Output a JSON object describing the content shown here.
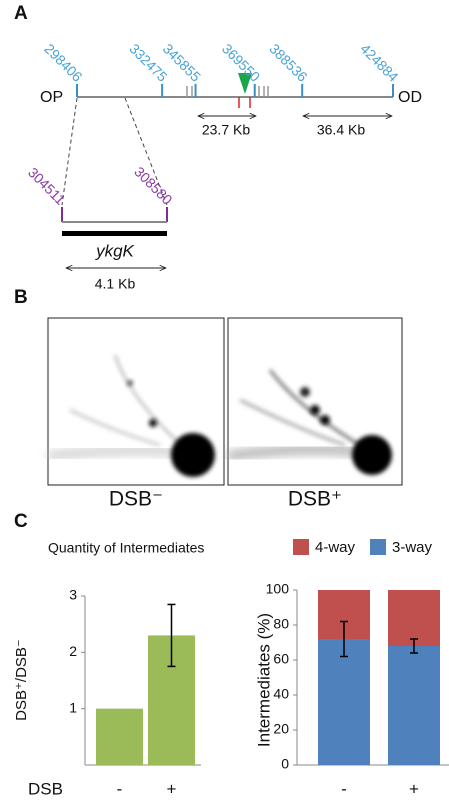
{
  "panel_labels": [
    "A",
    "B",
    "C"
  ],
  "map": {
    "left_label": "OP",
    "right_label": "OD",
    "xlim": [
      298406,
      424884
    ],
    "ticks": [
      298406,
      332475,
      345855,
      369550,
      388536,
      424884
    ],
    "spans": [
      "23.7 Kb",
      "36.4 Kb"
    ],
    "inset_ticks": [
      304511,
      308580
    ],
    "gene": "ykgK",
    "gene_span": "4.1 Kb"
  },
  "gel_labels": [
    "DSB⁻",
    "DSB⁺"
  ],
  "section_title": "Quantity of Intermediates",
  "x_axis_label": "DSB",
  "chart_data": [
    {
      "type": "bar",
      "ylabel": "DSB⁺/DSB⁻",
      "categories": [
        "-",
        "+"
      ],
      "values": [
        1,
        2.3
      ],
      "errors": [
        null,
        0.55
      ],
      "color": "#9bbb59",
      "ylim": [
        0,
        3
      ],
      "yticks": [
        1,
        2,
        3
      ]
    },
    {
      "type": "stacked_bar",
      "ylabel": "Intermediates (%)",
      "categories": [
        "-",
        "+"
      ],
      "series": [
        {
          "name": "4-way",
          "color": "#c0504d",
          "values": [
            28,
            32
          ]
        },
        {
          "name": "3-way",
          "color": "#4f81bd",
          "values": [
            72,
            68
          ],
          "errors": [
            10,
            4
          ]
        }
      ],
      "ylim": [
        0,
        100
      ],
      "yticks": [
        0,
        20,
        40,
        60,
        80,
        100
      ],
      "legend": "top-right"
    }
  ]
}
